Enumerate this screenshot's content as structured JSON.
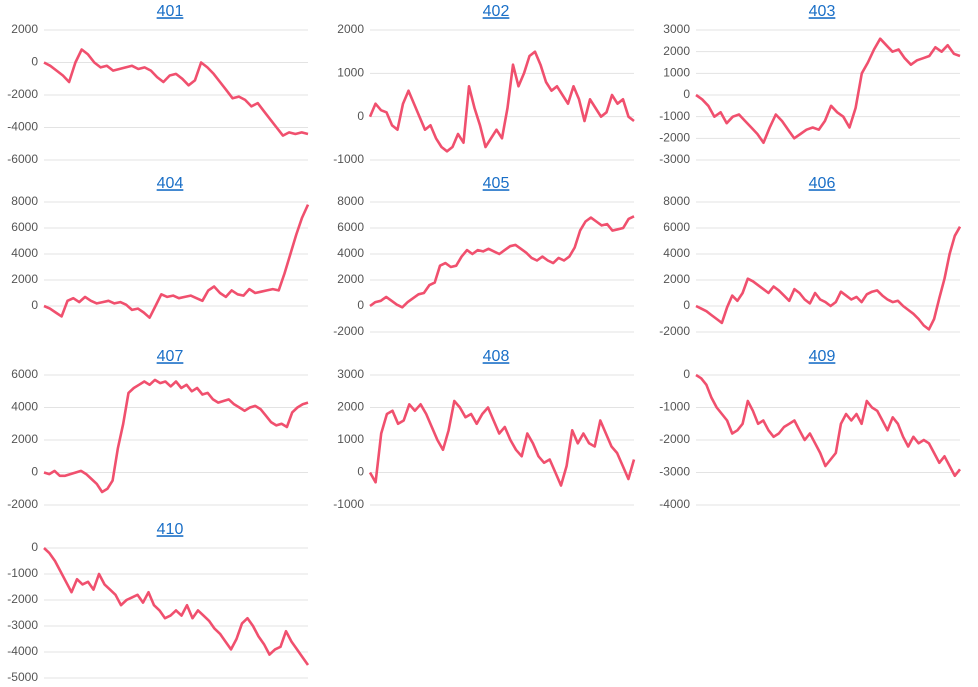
{
  "chart_data": [
    {
      "type": "line",
      "title": "401",
      "color": "#f0506e",
      "grid": true,
      "ylim": [
        -6000,
        2000
      ],
      "yticks": [
        2000,
        0,
        -2000,
        -4000,
        -6000
      ],
      "values": [
        0,
        -200,
        -500,
        -800,
        -1200,
        0,
        800,
        500,
        0,
        -300,
        -200,
        -500,
        -400,
        -300,
        -200,
        -400,
        -300,
        -500,
        -900,
        -1200,
        -800,
        -700,
        -1000,
        -1400,
        -1100,
        0,
        -300,
        -700,
        -1200,
        -1700,
        -2200,
        -2100,
        -2300,
        -2700,
        -2500,
        -3000,
        -3500,
        -4000,
        -4500,
        -4300,
        -4400,
        -4300,
        -4400
      ]
    },
    {
      "type": "line",
      "title": "402",
      "color": "#f0506e",
      "grid": true,
      "ylim": [
        -1000,
        2000
      ],
      "yticks": [
        2000,
        1000,
        0,
        -1000
      ],
      "values": [
        0,
        300,
        150,
        100,
        -200,
        -300,
        300,
        600,
        300,
        0,
        -300,
        -200,
        -500,
        -700,
        -800,
        -700,
        -400,
        -600,
        700,
        200,
        -200,
        -700,
        -500,
        -300,
        -500,
        200,
        1200,
        700,
        1000,
        1400,
        1500,
        1200,
        800,
        600,
        700,
        500,
        300,
        700,
        400,
        -100,
        400,
        200,
        0,
        100,
        500,
        300,
        400,
        0,
        -100
      ]
    },
    {
      "type": "line",
      "title": "403",
      "color": "#f0506e",
      "grid": true,
      "ylim": [
        -3000,
        3000
      ],
      "yticks": [
        3000,
        2000,
        1000,
        0,
        -1000,
        -2000,
        -3000
      ],
      "values": [
        0,
        -200,
        -500,
        -1000,
        -800,
        -1300,
        -1000,
        -900,
        -1200,
        -1500,
        -1800,
        -2200,
        -1500,
        -900,
        -1200,
        -1600,
        -2000,
        -1800,
        -1600,
        -1500,
        -1600,
        -1200,
        -500,
        -800,
        -1000,
        -1500,
        -600,
        1000,
        1500,
        2100,
        2600,
        2300,
        2000,
        2100,
        1700,
        1400,
        1600,
        1700,
        1800,
        2200,
        2000,
        2300,
        1900,
        1800
      ]
    },
    {
      "type": "line",
      "title": "404",
      "color": "#f0506e",
      "grid": true,
      "ylim": [
        -2000,
        8000
      ],
      "yticks": [
        8000,
        6000,
        4000,
        2000,
        0
      ],
      "values": [
        0,
        -200,
        -500,
        -800,
        400,
        600,
        300,
        700,
        400,
        200,
        300,
        400,
        200,
        300,
        100,
        -300,
        -200,
        -500,
        -900,
        0,
        900,
        700,
        800,
        600,
        700,
        800,
        600,
        400,
        1200,
        1500,
        1000,
        700,
        1200,
        900,
        800,
        1300,
        1000,
        1100,
        1200,
        1300,
        1200,
        2500,
        4000,
        5500,
        6800,
        7800
      ]
    },
    {
      "type": "line",
      "title": "405",
      "color": "#f0506e",
      "grid": true,
      "ylim": [
        -2000,
        8000
      ],
      "yticks": [
        8000,
        6000,
        4000,
        2000,
        0,
        -2000
      ],
      "values": [
        0,
        300,
        400,
        700,
        400,
        100,
        -100,
        300,
        600,
        900,
        1000,
        1600,
        1800,
        3100,
        3300,
        3000,
        3100,
        3800,
        4300,
        4000,
        4300,
        4200,
        4400,
        4200,
        4000,
        4300,
        4600,
        4700,
        4400,
        4100,
        3700,
        3500,
        3800,
        3500,
        3300,
        3700,
        3500,
        3800,
        4500,
        5800,
        6500,
        6800,
        6500,
        6200,
        6300,
        5800,
        5900,
        6000,
        6700,
        6900
      ]
    },
    {
      "type": "line",
      "title": "406",
      "color": "#f0506e",
      "grid": true,
      "ylim": [
        -2000,
        8000
      ],
      "yticks": [
        8000,
        6000,
        4000,
        2000,
        0,
        -2000
      ],
      "values": [
        0,
        -200,
        -400,
        -700,
        -1000,
        -1300,
        -100,
        800,
        400,
        1000,
        2100,
        1900,
        1600,
        1300,
        1000,
        1500,
        1200,
        800,
        400,
        1300,
        1000,
        500,
        200,
        1000,
        500,
        300,
        0,
        300,
        1100,
        800,
        500,
        700,
        300,
        900,
        1100,
        1200,
        800,
        500,
        300,
        400,
        0,
        -300,
        -600,
        -1000,
        -1500,
        -1800,
        -1000,
        600,
        2100,
        4000,
        5400,
        6100
      ]
    },
    {
      "type": "line",
      "title": "407",
      "color": "#f0506e",
      "grid": true,
      "ylim": [
        -2000,
        6000
      ],
      "yticks": [
        6000,
        4000,
        2000,
        0,
        -2000
      ],
      "values": [
        0,
        -100,
        100,
        -200,
        -200,
        -100,
        0,
        100,
        -100,
        -400,
        -700,
        -1200,
        -1000,
        -500,
        1500,
        3000,
        4900,
        5200,
        5400,
        5600,
        5400,
        5700,
        5500,
        5600,
        5300,
        5600,
        5200,
        5400,
        5000,
        5200,
        4800,
        4900,
        4500,
        4300,
        4400,
        4500,
        4200,
        4000,
        3800,
        4000,
        4100,
        3900,
        3500,
        3100,
        2900,
        3000,
        2800,
        3700,
        4000,
        4200,
        4300
      ]
    },
    {
      "type": "line",
      "title": "408",
      "color": "#f0506e",
      "grid": true,
      "ylim": [
        -1000,
        3000
      ],
      "yticks": [
        3000,
        2000,
        1000,
        0,
        -1000
      ],
      "values": [
        0,
        -300,
        1200,
        1800,
        1900,
        1500,
        1600,
        2100,
        1900,
        2100,
        1800,
        1400,
        1000,
        700,
        1300,
        2200,
        2000,
        1700,
        1800,
        1500,
        1800,
        2000,
        1600,
        1200,
        1400,
        1000,
        700,
        500,
        1200,
        900,
        500,
        300,
        400,
        0,
        -400,
        200,
        1300,
        900,
        1200,
        900,
        800,
        1600,
        1200,
        800,
        600,
        200,
        -200,
        400
      ]
    },
    {
      "type": "line",
      "title": "409",
      "color": "#f0506e",
      "grid": true,
      "ylim": [
        -4000,
        0
      ],
      "yticks": [
        0,
        -1000,
        -2000,
        -3000,
        -4000
      ],
      "values": [
        0,
        -100,
        -300,
        -700,
        -1000,
        -1200,
        -1400,
        -1800,
        -1700,
        -1500,
        -800,
        -1100,
        -1500,
        -1400,
        -1700,
        -1900,
        -1800,
        -1600,
        -1500,
        -1400,
        -1700,
        -2000,
        -1800,
        -2100,
        -2400,
        -2800,
        -2600,
        -2400,
        -1500,
        -1200,
        -1400,
        -1200,
        -1500,
        -800,
        -1000,
        -1100,
        -1400,
        -1700,
        -1300,
        -1500,
        -1900,
        -2200,
        -1900,
        -2100,
        -2000,
        -2100,
        -2400,
        -2700,
        -2500,
        -2800,
        -3100,
        -2900
      ]
    },
    {
      "type": "line",
      "title": "410",
      "color": "#f0506e",
      "grid": true,
      "ylim": [
        -5000,
        0
      ],
      "yticks": [
        0,
        -1000,
        -2000,
        -3000,
        -4000,
        -5000
      ],
      "values": [
        0,
        -200,
        -500,
        -900,
        -1300,
        -1700,
        -1200,
        -1400,
        -1300,
        -1600,
        -1000,
        -1400,
        -1600,
        -1800,
        -2200,
        -2000,
        -1900,
        -1800,
        -2100,
        -1700,
        -2200,
        -2400,
        -2700,
        -2600,
        -2400,
        -2600,
        -2200,
        -2700,
        -2400,
        -2600,
        -2800,
        -3100,
        -3300,
        -3600,
        -3900,
        -3500,
        -2900,
        -2700,
        -3000,
        -3400,
        -3700,
        -4100,
        -3900,
        -3800,
        -3200,
        -3600,
        -3900,
        -4200,
        -4500
      ]
    }
  ]
}
